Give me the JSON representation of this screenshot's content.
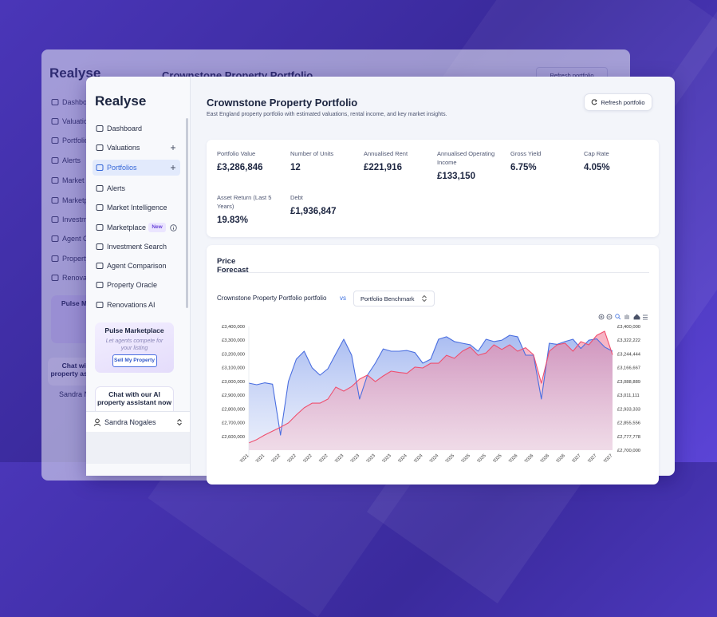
{
  "page": {
    "logo": "Realyse",
    "nav": [
      "Dashboard",
      "Valuations",
      "Portfolios",
      "Alerts",
      "Market Intelligence",
      "Marketplace",
      "Investment Search",
      "Agent Comparison",
      "Property Oracle",
      "Renovations AI"
    ],
    "new_badge": "New",
    "promo": {
      "title": "Pulse Marketplace",
      "text": "Let agents compete for your listing",
      "button": "Sell My Property"
    },
    "chat": "Chat with our AI property assistant now",
    "user": "Sandra Nogales",
    "header": {
      "title": "Crownstone Property Portfolio",
      "subtitle": "East England property portfolio with estimated valuations, rental income, and key market insights.",
      "refresh": "Refresh portfolio"
    },
    "metrics": [
      {
        "label": "Portfolio Value",
        "value": "£3,286,846"
      },
      {
        "label": "Number of Units",
        "value": 12
      },
      {
        "label": "Annualised Rent",
        "value": "£221,916"
      },
      {
        "label": "Annualised Operating Income",
        "value": "£133,150"
      },
      {
        "label": "Gross Yield",
        "value": "6.75%"
      },
      {
        "label": "Cap Rate",
        "value": "4.05%"
      },
      {
        "label": "Asset Return (Last 5 Years)",
        "value": "19.83%"
      },
      {
        "label": "Debt",
        "value": "£1,936,847"
      }
    ],
    "vs": "vs"
  },
  "chart_data": {
    "type": "area",
    "title": "Price Forecast",
    "categories": [
      "2021",
      null,
      "2021",
      null,
      "2022",
      null,
      "2022",
      null,
      "2022",
      null,
      "2022",
      null,
      "2023",
      null,
      "2023",
      null,
      "2023",
      null,
      "2023",
      null,
      "2024",
      null,
      "2024",
      null,
      "2024",
      null,
      "2025",
      null,
      "2025",
      null,
      "2025",
      null,
      "2025",
      null,
      "2026",
      null,
      "2026",
      null,
      "2026",
      null,
      "2026",
      null,
      "2027",
      null,
      "2027",
      null,
      "2027"
    ],
    "series": [
      {
        "name": "Crownstone Property Portfolio portfolio",
        "color": "#4a6ee0",
        "values": [
          2988000,
          2976000,
          2990000,
          2980000,
          2610000,
          3000000,
          3162000,
          3220000,
          3100000,
          3046000,
          3092000,
          3200000,
          3307000,
          3191000,
          2872000,
          3046000,
          3133000,
          3237000,
          3220000,
          3220000,
          3225000,
          3210000,
          3133000,
          3162000,
          3307000,
          3325000,
          3290000,
          3278000,
          3267000,
          3220000,
          3307000,
          3290000,
          3300000,
          3336000,
          3325000,
          3191000,
          3191000,
          2872000,
          3278000,
          3270000,
          3290000,
          3307000,
          3240000,
          3300000,
          3310000,
          3250000,
          3220000
        ]
      },
      {
        "name": "Portfolio Benchmark",
        "color": "#ef4f6e",
        "axis": "y2",
        "values": [
          2741000,
          2760000,
          2786000,
          2808000,
          2830000,
          2854000,
          2899000,
          2940000,
          2966000,
          2966000,
          2989000,
          3057000,
          3034000,
          3060000,
          3102000,
          3125000,
          3088000,
          3120000,
          3147000,
          3140000,
          3135000,
          3170000,
          3165000,
          3192000,
          3192000,
          3237000,
          3220000,
          3260000,
          3283000,
          3237000,
          3250000,
          3296000,
          3270000,
          3296000,
          3260000,
          3280000,
          3240000,
          3079000,
          3260000,
          3296000,
          3305000,
          3260000,
          3314000,
          3296000,
          3350000,
          3373000,
          3240000
        ]
      }
    ],
    "ylim": [
      2500000,
      3400000
    ],
    "yticks": [
      {
        "value": 2600000,
        "label": "£2,600,000"
      },
      {
        "value": 2700000,
        "label": "£2,700,000"
      },
      {
        "value": 2800000,
        "label": "£2,800,000"
      },
      {
        "value": 2900000,
        "label": "£2,900,000"
      },
      {
        "value": 3000000,
        "label": "£3,000,000"
      },
      {
        "value": 3100000,
        "label": "£3,100,000"
      },
      {
        "value": 3200000,
        "label": "£3,200,000"
      },
      {
        "value": 3300000,
        "label": "£3,300,000"
      },
      {
        "value": 3400000,
        "label": "£3,400,000"
      }
    ],
    "y2lim": [
      2700000,
      3400000
    ],
    "y2ticks": [
      {
        "value": 2700000,
        "label": "£2,700,000"
      },
      {
        "value": 2777778,
        "label": "£2,777,778"
      },
      {
        "value": 2855556,
        "label": "£2,855,556"
      },
      {
        "value": 2933333,
        "label": "£2,933,333"
      },
      {
        "value": 3011111,
        "label": "£3,011,111"
      },
      {
        "value": 3088889,
        "label": "£3,088,889"
      },
      {
        "value": 3166667,
        "label": "£3,166,667"
      },
      {
        "value": 3244444,
        "label": "£3,244,444"
      },
      {
        "value": 3322222,
        "label": "£3,322,222"
      },
      {
        "value": 3400000,
        "label": "£3,400,000"
      }
    ]
  }
}
